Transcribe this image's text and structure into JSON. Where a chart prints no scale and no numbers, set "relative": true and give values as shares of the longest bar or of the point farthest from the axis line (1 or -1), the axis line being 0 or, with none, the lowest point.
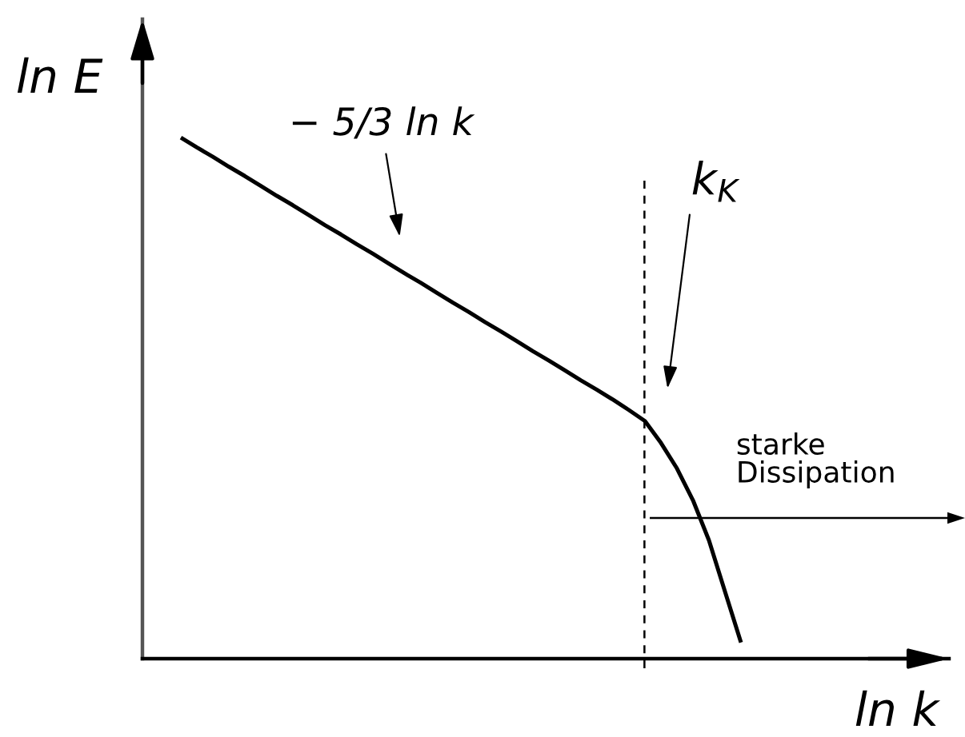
{
  "chart_data": {
    "type": "line",
    "relative": true,
    "xlabel": "ln k",
    "ylabel": "ln E",
    "categories": [
      null,
      null,
      null,
      null,
      null,
      null,
      null,
      null,
      null,
      null,
      null,
      null,
      null,
      null,
      null,
      null,
      null,
      null,
      null,
      null,
      null,
      null,
      null,
      null,
      null,
      null,
      null,
      null,
      null,
      null,
      null,
      null,
      null,
      null,
      null,
      null
    ],
    "series": [
      {
        "color": "#000000",
        "values": [
          1,
          0.981,
          0.963,
          0.944,
          0.926,
          0.907,
          0.888,
          0.87,
          0.851,
          0.832,
          0.814,
          0.795,
          0.777,
          0.758,
          0.739,
          0.721,
          0.702,
          0.683,
          0.665,
          0.646,
          0.628,
          0.609,
          0.59,
          0.572,
          0.553,
          0.534,
          0.516,
          0.497,
          0.477,
          0.456,
          0.414,
          0.365,
          0.304,
          0.227,
          0.129,
          0.031
        ]
      }
    ],
    "annotations": [
      "− 5/3 ln k",
      "k$_{K}$",
      "starke\nDissipation"
    ]
  }
}
